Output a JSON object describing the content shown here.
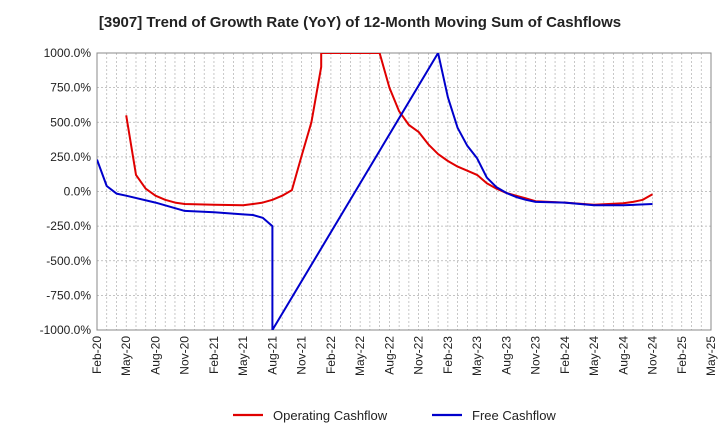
{
  "chart_data": {
    "type": "line",
    "title": "[3907]  Trend of Growth Rate (YoY) of 12-Month Moving Sum of Cashflows",
    "xlabel": "",
    "ylabel": "",
    "ylim": [
      -1000,
      1000
    ],
    "y_ticks": [
      1000,
      750,
      500,
      250,
      0,
      -250,
      -500,
      -750,
      -1000
    ],
    "y_tick_labels": [
      "1000.0%",
      "750.0%",
      "500.0%",
      "250.0%",
      "0.0%",
      "-250.0%",
      "-500.0%",
      "-750.0%",
      "-1000.0%"
    ],
    "x_tick_labels": [
      "Feb-20",
      "May-20",
      "Aug-20",
      "Nov-20",
      "Feb-21",
      "May-21",
      "Aug-21",
      "Nov-21",
      "Feb-22",
      "May-22",
      "Aug-22",
      "Nov-22",
      "Feb-23",
      "May-23",
      "Aug-23",
      "Nov-23",
      "Feb-24",
      "May-24",
      "Aug-24",
      "Nov-24",
      "Feb-25",
      "May-25"
    ],
    "grid": true,
    "legend_position": "bottom-center",
    "series": [
      {
        "name": "Operating Cashflow",
        "color": "#e00000",
        "points": [
          [
            "May-20",
            550
          ],
          [
            "Jun-20",
            120
          ],
          [
            "Jul-20",
            20
          ],
          [
            "Aug-20",
            -30
          ],
          [
            "Sep-20",
            -60
          ],
          [
            "Oct-20",
            -80
          ],
          [
            "Nov-20",
            -90
          ],
          [
            "Feb-21",
            -95
          ],
          [
            "May-21",
            -100
          ],
          [
            "Jun-21",
            -90
          ],
          [
            "Jul-21",
            -80
          ],
          [
            "Aug-21",
            -60
          ],
          [
            "Sep-21",
            -30
          ],
          [
            "Oct-21",
            10
          ],
          [
            "Nov-21",
            260
          ],
          [
            "Dec-21",
            500
          ],
          [
            "Jan-22",
            900
          ],
          [
            "Jan-22",
            1000
          ],
          [
            "Jul-22",
            1000
          ],
          [
            "Aug-22",
            750
          ],
          [
            "Sep-22",
            580
          ],
          [
            "Oct-22",
            480
          ],
          [
            "Nov-22",
            430
          ],
          [
            "Dec-22",
            340
          ],
          [
            "Jan-23",
            270
          ],
          [
            "Feb-23",
            220
          ],
          [
            "Mar-23",
            180
          ],
          [
            "Apr-23",
            150
          ],
          [
            "May-23",
            120
          ],
          [
            "Jun-23",
            60
          ],
          [
            "Jul-23",
            20
          ],
          [
            "Aug-23",
            -10
          ],
          [
            "Sep-23",
            -30
          ],
          [
            "Oct-23",
            -50
          ],
          [
            "Nov-23",
            -70
          ],
          [
            "Feb-24",
            -80
          ],
          [
            "May-24",
            -95
          ],
          [
            "Aug-24",
            -85
          ],
          [
            "Sep-24",
            -75
          ],
          [
            "Oct-24",
            -60
          ],
          [
            "Nov-24",
            -20
          ]
        ]
      },
      {
        "name": "Free Cashflow",
        "color": "#0000cc",
        "points": [
          [
            "Feb-20",
            230
          ],
          [
            "Mar-20",
            40
          ],
          [
            "Apr-20",
            -15
          ],
          [
            "May-20",
            -30
          ],
          [
            "Aug-20",
            -80
          ],
          [
            "Nov-20",
            -140
          ],
          [
            "Feb-21",
            -150
          ],
          [
            "May-21",
            -165
          ],
          [
            "Jun-21",
            -170
          ],
          [
            "Jul-21",
            -190
          ],
          [
            "Aug-21",
            -250
          ],
          [
            "Aug-21",
            -1000
          ],
          [
            "Jan-23",
            1000
          ],
          [
            "Feb-23",
            680
          ],
          [
            "Mar-23",
            460
          ],
          [
            "Apr-23",
            330
          ],
          [
            "May-23",
            240
          ],
          [
            "Jun-23",
            100
          ],
          [
            "Jul-23",
            30
          ],
          [
            "Aug-23",
            -10
          ],
          [
            "Sep-23",
            -40
          ],
          [
            "Oct-23",
            -60
          ],
          [
            "Nov-23",
            -75
          ],
          [
            "Feb-24",
            -80
          ],
          [
            "May-24",
            -100
          ],
          [
            "Aug-24",
            -100
          ],
          [
            "Nov-24",
            -90
          ]
        ]
      }
    ]
  }
}
